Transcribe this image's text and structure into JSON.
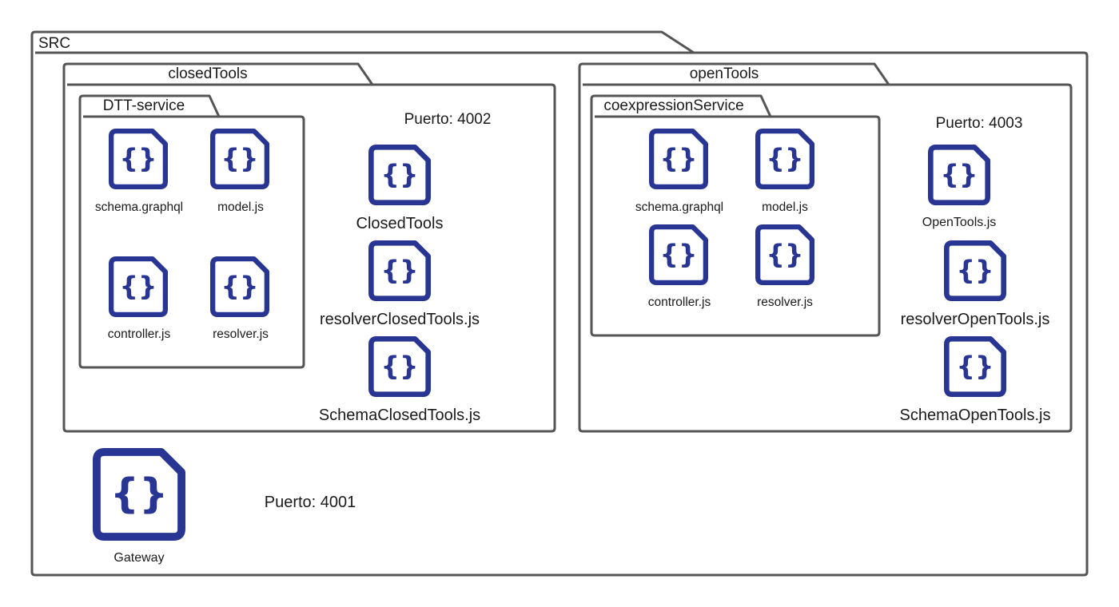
{
  "packages": {
    "src": {
      "label": "SRC"
    },
    "closed_tools": {
      "label": "closedTools",
      "port": "Puerto: 4002"
    },
    "dtt_service": {
      "label": "DTT-service"
    },
    "open_tools": {
      "label": "openTools",
      "port": "Puerto: 4003"
    },
    "coexpression_service": {
      "label": "coexpressionService"
    }
  },
  "files": {
    "dtt_schema": "schema.graphql",
    "dtt_model": "model.js",
    "dtt_controller": "controller.js",
    "dtt_resolver": "resolver.js",
    "closed_tools_main": "ClosedTools",
    "closed_tools_resolver": "resolverClosedTools.js",
    "closed_tools_schema": "SchemaClosedTools.js",
    "coexp_schema": "schema.graphql",
    "coexp_model": "model.js",
    "coexp_controller": "controller.js",
    "coexp_resolver": "resolver.js",
    "open_tools_main": "OpenTools.js",
    "open_tools_resolver": "resolverOpenTools.js",
    "open_tools_schema": "SchemaOpenTools.js",
    "gateway": "Gateway"
  },
  "gateway_port": "Puerto: 4001",
  "icon": {
    "name": "code-file-icon",
    "glyph": "{}",
    "color": "#283593"
  },
  "colors": {
    "outline": "#555555",
    "icon": "#283593",
    "text": "#1a1a1a"
  }
}
